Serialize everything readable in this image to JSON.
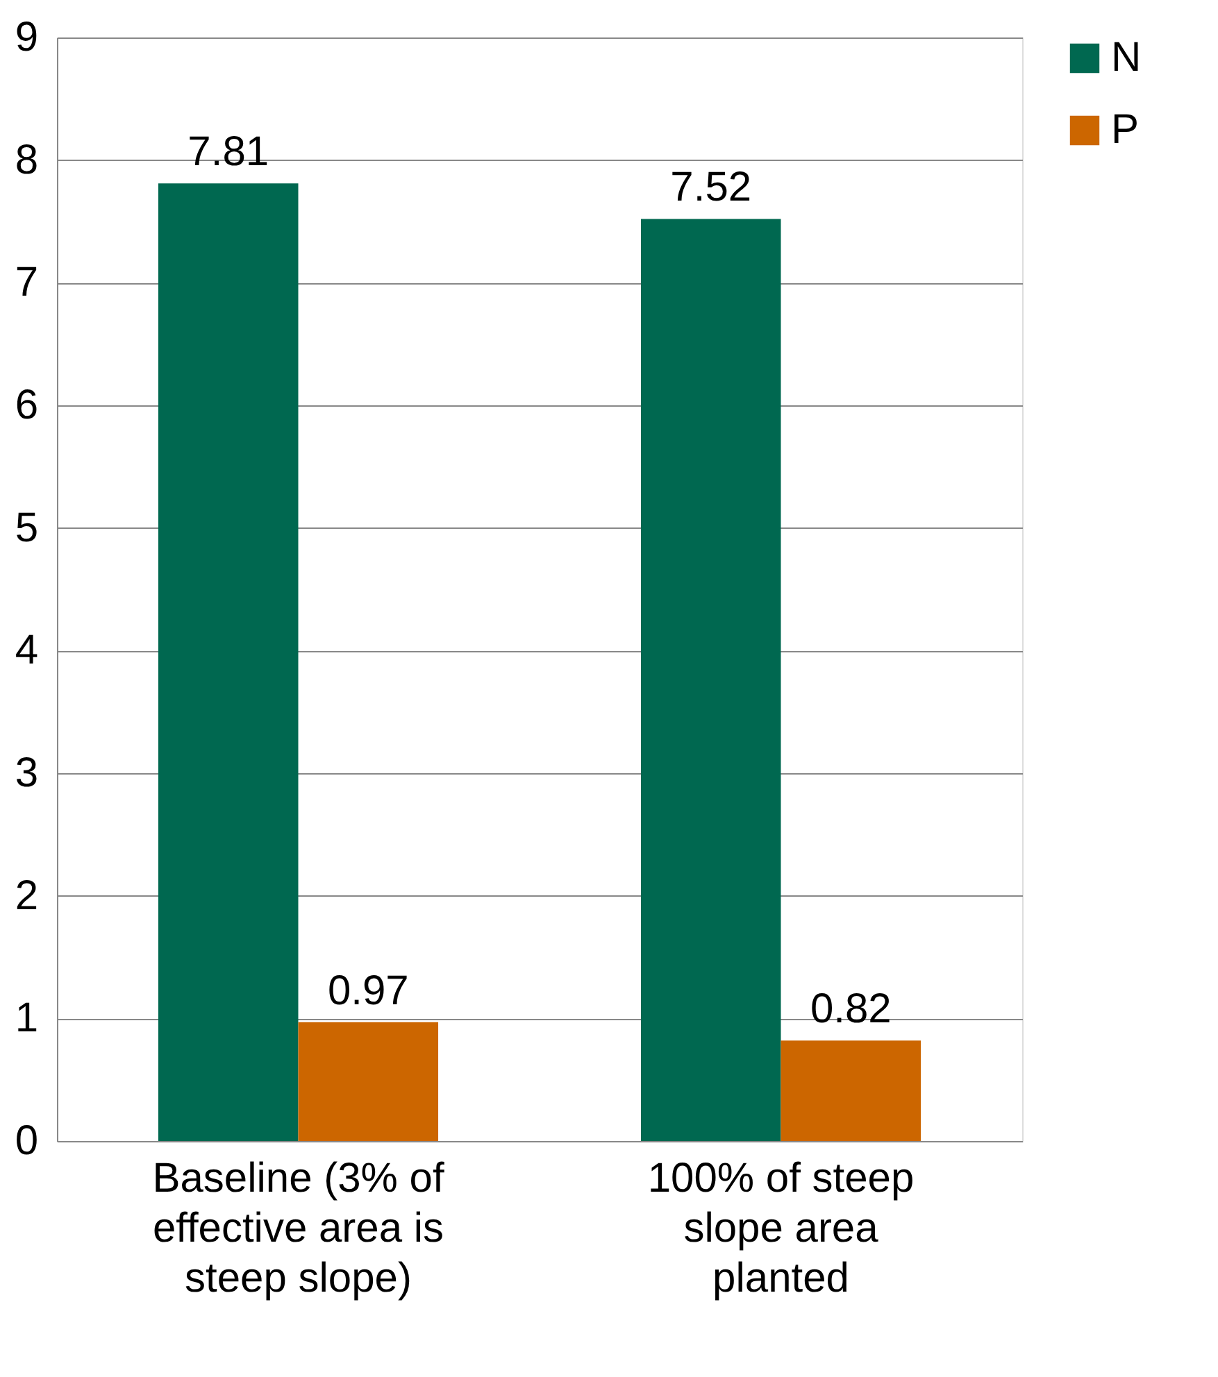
{
  "chart_data": {
    "type": "bar",
    "categories": [
      "Baseline (3% of effective area is steep slope)",
      "100% of steep slope area planted"
    ],
    "series": [
      {
        "name": "N",
        "color": "#006850",
        "values": [
          7.81,
          7.52
        ]
      },
      {
        "name": "P",
        "color": "#cc6600",
        "values": [
          0.97,
          0.82
        ]
      }
    ],
    "ylim": [
      0,
      9
    ],
    "yticks": [
      0,
      1,
      2,
      3,
      4,
      5,
      6,
      7,
      8,
      9
    ],
    "grid": "y",
    "legend": "right",
    "data_labels": true
  }
}
